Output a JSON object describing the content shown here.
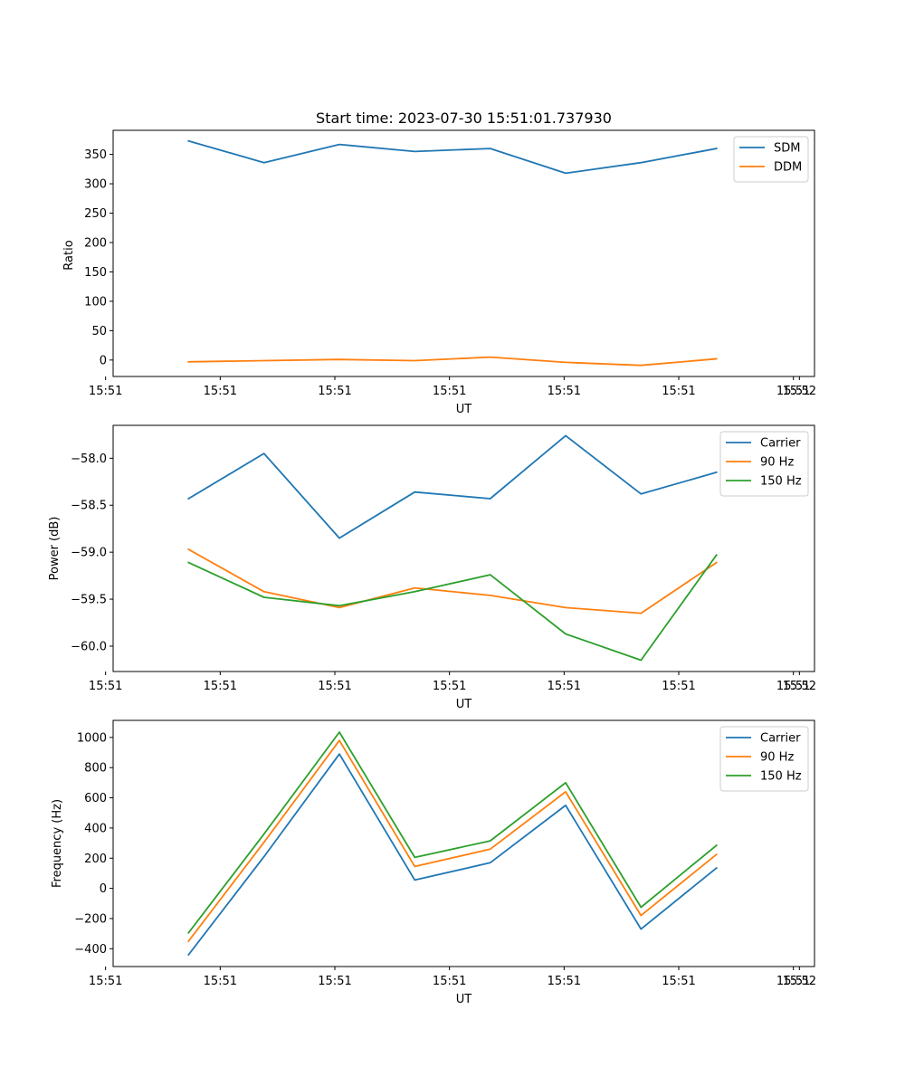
{
  "chart_data": [
    {
      "type": "line",
      "title": "Start time: 2023-07-30 15:51:01.737930",
      "xlabel": "UT",
      "ylabel": "Ratio",
      "x_tick_labels": [
        "15:51",
        "15:51",
        "15:51",
        "15:51",
        "15:51",
        "15:51",
        "15:51"
      ],
      "x_last_tick_label": "15:52",
      "yticks": [
        0,
        50,
        100,
        150,
        200,
        250,
        300,
        350
      ],
      "ytick_labels": [
        "0",
        "50",
        "100",
        "150",
        "200",
        "250",
        "300",
        "350"
      ],
      "ylim": [
        -28,
        391
      ],
      "x": [
        1,
        2,
        3,
        4,
        5,
        6,
        7,
        8
      ],
      "xlim": [
        0,
        9.3
      ],
      "legend": "upper right",
      "series": [
        {
          "name": "SDM",
          "color": "#1f77b4",
          "values": [
            373,
            336,
            367,
            355,
            360,
            318,
            336,
            360
          ]
        },
        {
          "name": "DDM",
          "color": "#ff7f0e",
          "values": [
            -3,
            -1,
            1,
            -1,
            5,
            -4,
            -9,
            2
          ]
        }
      ]
    },
    {
      "type": "line",
      "title": "",
      "xlabel": "UT",
      "ylabel": "Power (dB)",
      "x_tick_labels": [
        "15:51",
        "15:51",
        "15:51",
        "15:51",
        "15:51",
        "15:51",
        "15:51"
      ],
      "x_last_tick_label": "15:52",
      "yticks": [
        -60.0,
        -59.5,
        -59.0,
        -58.5,
        -58.0
      ],
      "ytick_labels": [
        "−60.0",
        "−59.5",
        "−59.0",
        "−58.5",
        "−58.0"
      ],
      "ylim": [
        -60.27,
        -57.65
      ],
      "x": [
        1,
        2,
        3,
        4,
        5,
        6,
        7,
        8
      ],
      "xlim": [
        0,
        9.3
      ],
      "legend": "upper right",
      "series": [
        {
          "name": "Carrier",
          "color": "#1f77b4",
          "values": [
            -58.43,
            -57.95,
            -58.85,
            -58.36,
            -58.43,
            -57.76,
            -58.38,
            -58.15
          ]
        },
        {
          "name": "90 Hz",
          "color": "#ff7f0e",
          "values": [
            -58.97,
            -59.42,
            -59.59,
            -59.38,
            -59.46,
            -59.59,
            -59.65,
            -59.11
          ]
        },
        {
          "name": "150 Hz",
          "color": "#2ca02c",
          "values": [
            -59.11,
            -59.48,
            -59.57,
            -59.42,
            -59.24,
            -59.87,
            -60.15,
            -59.03
          ]
        }
      ]
    },
    {
      "type": "line",
      "title": "",
      "xlabel": "UT",
      "ylabel": "Frequency (Hz)",
      "x_tick_labels": [
        "15:51",
        "15:51",
        "15:51",
        "15:51",
        "15:51",
        "15:51",
        "15:51"
      ],
      "x_last_tick_label": "15:52",
      "yticks": [
        -400,
        -200,
        0,
        200,
        400,
        600,
        800,
        1000
      ],
      "ytick_labels": [
        "−400",
        "−200",
        "0",
        "200",
        "400",
        "600",
        "800",
        "1000"
      ],
      "ylim": [
        -518,
        1113
      ],
      "x": [
        1,
        2,
        3,
        4,
        5,
        6,
        7,
        8
      ],
      "xlim": [
        0,
        9.3
      ],
      "legend": "upper right",
      "series": [
        {
          "name": "Carrier",
          "color": "#1f77b4",
          "values": [
            -440,
            210,
            890,
            55,
            170,
            550,
            -270,
            135
          ]
        },
        {
          "name": "90 Hz",
          "color": "#ff7f0e",
          "values": [
            -350,
            305,
            980,
            145,
            260,
            640,
            -180,
            225
          ]
        },
        {
          "name": "150 Hz",
          "color": "#2ca02c",
          "values": [
            -295,
            360,
            1035,
            205,
            315,
            700,
            -125,
            285
          ]
        }
      ]
    }
  ]
}
